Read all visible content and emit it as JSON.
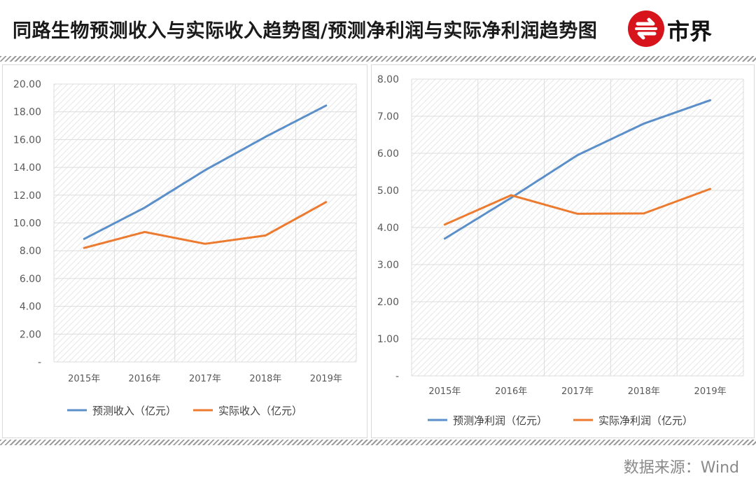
{
  "header": {
    "title": "同路生物预测收入与实际收入趋势图/预测净利润与实际净利润趋势图",
    "logo_text": "市界"
  },
  "footer": {
    "source": "数据来源：Wind"
  },
  "colors": {
    "forecast": "#5b8fc9",
    "actual": "#ec7a2f",
    "grid": "#dcdcdc"
  },
  "chart_data": [
    {
      "type": "line",
      "categories": [
        "2015年",
        "2016年",
        "2017年",
        "2018年",
        "2019年"
      ],
      "ylim": [
        0,
        20
      ],
      "yticks": [
        "-",
        "2.00",
        "4.00",
        "6.00",
        "8.00",
        "10.00",
        "12.00",
        "14.00",
        "16.00",
        "18.00",
        "20.00"
      ],
      "series": [
        {
          "name": "预测收入（亿元）",
          "values": [
            8.85,
            11.1,
            13.8,
            16.2,
            18.45
          ]
        },
        {
          "name": "实际收入（亿元）",
          "values": [
            8.2,
            9.35,
            8.5,
            9.1,
            11.5
          ]
        }
      ],
      "grid": true,
      "legend": "bottom"
    },
    {
      "type": "line",
      "categories": [
        "2015年",
        "2016年",
        "2017年",
        "2018年",
        "2019年"
      ],
      "ylim": [
        0,
        8
      ],
      "yticks": [
        "-",
        "1.00",
        "2.00",
        "3.00",
        "4.00",
        "5.00",
        "6.00",
        "7.00",
        "8.00"
      ],
      "series": [
        {
          "name": "预测净利润（亿元）",
          "values": [
            3.7,
            4.8,
            5.95,
            6.8,
            7.43
          ]
        },
        {
          "name": "实际净利润（亿元）",
          "values": [
            4.08,
            4.87,
            4.37,
            4.38,
            5.04
          ]
        }
      ],
      "grid": true,
      "legend": "bottom"
    }
  ]
}
